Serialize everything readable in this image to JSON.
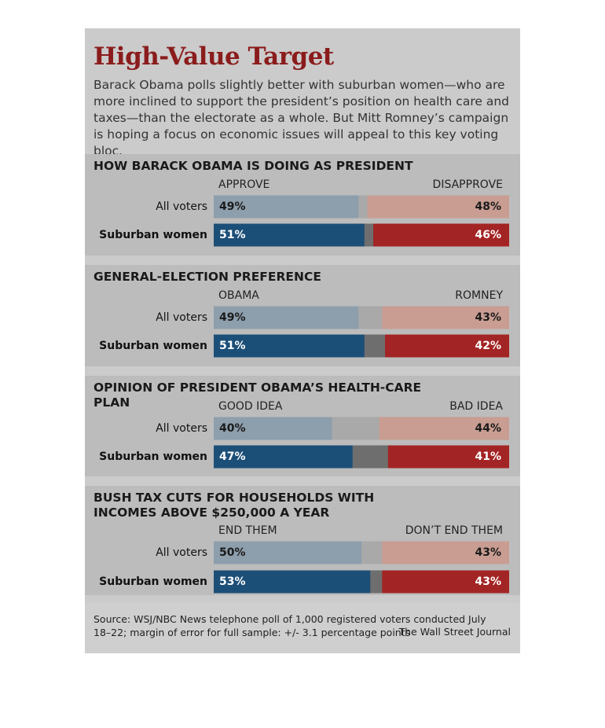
{
  "title": "High-Value Target",
  "description": "Barack Obama polls slightly better with suburban women—who are more inclined to support the president’s position on health care and taxes—than the electorate as a whole. But Mitt Romney’s campaign is hoping a focus on economic issues will appeal to this key voting bloc.",
  "source": "Source: WSJ/NBC News telephone poll of 1,000 registered voters conducted July 18–22; margin of error for full sample: +/- 3.1 percentage points",
  "credit": "The Wall Street Journal",
  "chart_data": [
    {
      "type": "bar",
      "title": "HOW BARACK OBAMA IS DOING AS PRESIDENT",
      "categories": [
        "All voters",
        "Suburban women"
      ],
      "xlim": [
        0,
        100
      ],
      "series": [
        {
          "name": "APPROVE",
          "colors": [
            "#8d9eac",
            "#1c4f78"
          ],
          "values": [
            49,
            51
          ],
          "value_labels": [
            "49%",
            "51%"
          ]
        },
        {
          "name": "DISAPPROVE",
          "colors": [
            "#c99d92",
            "#a32424"
          ],
          "values": [
            48,
            46
          ],
          "value_labels": [
            "48%",
            "46%"
          ]
        }
      ]
    },
    {
      "type": "bar",
      "title": "GENERAL-ELECTION PREFERENCE",
      "categories": [
        "All voters",
        "Suburban women"
      ],
      "xlim": [
        0,
        100
      ],
      "series": [
        {
          "name": "OBAMA",
          "colors": [
            "#8d9eac",
            "#1c4f78"
          ],
          "values": [
            49,
            51
          ],
          "value_labels": [
            "49%",
            "51%"
          ]
        },
        {
          "name": "ROMNEY",
          "colors": [
            "#c99d92",
            "#a32424"
          ],
          "values": [
            43,
            42
          ],
          "value_labels": [
            "43%",
            "42%"
          ]
        }
      ]
    },
    {
      "type": "bar",
      "title": "OPINION OF PRESIDENT OBAMA’S HEALTH-CARE PLAN",
      "categories": [
        "All voters",
        "Suburban women"
      ],
      "xlim": [
        0,
        100
      ],
      "series": [
        {
          "name": "GOOD IDEA",
          "colors": [
            "#8d9eac",
            "#1c4f78"
          ],
          "values": [
            40,
            47
          ],
          "value_labels": [
            "40%",
            "47%"
          ]
        },
        {
          "name": "BAD IDEA",
          "colors": [
            "#c99d92",
            "#a32424"
          ],
          "values": [
            44,
            41
          ],
          "value_labels": [
            "44%",
            "41%"
          ]
        }
      ]
    },
    {
      "type": "bar",
      "title": "BUSH TAX CUTS FOR HOUSEHOLDS WITH INCOMES ABOVE $250,000 A YEAR",
      "categories": [
        "All voters",
        "Suburban women"
      ],
      "xlim": [
        0,
        100
      ],
      "series": [
        {
          "name": "END THEM",
          "colors": [
            "#8d9eac",
            "#1c4f78"
          ],
          "values": [
            50,
            53
          ],
          "value_labels": [
            "50%",
            "53%"
          ]
        },
        {
          "name": "DON’T END THEM",
          "colors": [
            "#c99d92",
            "#a32424"
          ],
          "values": [
            43,
            43
          ],
          "value_labels": [
            "43%",
            "43%"
          ]
        }
      ]
    }
  ]
}
